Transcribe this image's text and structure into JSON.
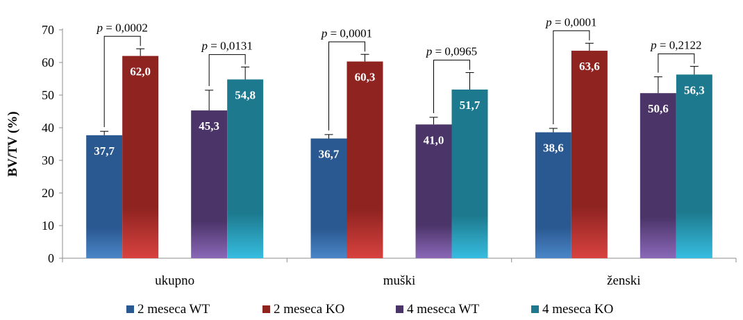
{
  "chart_data": {
    "type": "bar",
    "title": "",
    "xlabel": "",
    "ylabel": "BV/TV (%)",
    "ylim": [
      0,
      70
    ],
    "yticks": [
      0,
      10,
      20,
      30,
      40,
      50,
      60,
      70
    ],
    "categories": [
      "ukupno",
      "muški",
      "ženski"
    ],
    "series": [
      {
        "name": "2 meseca WT",
        "values": [
          37.7,
          36.7,
          38.6
        ],
        "labels": [
          "37,7",
          "36,7",
          "38,6"
        ],
        "errors": [
          1.2,
          1.2,
          1.2
        ],
        "color_top": "#2a5890",
        "color_bottom": "#4a86c8"
      },
      {
        "name": "2 meseca KO",
        "values": [
          62.0,
          60.3,
          63.6
        ],
        "labels": [
          "62,0",
          "60,3",
          "63,6"
        ],
        "errors": [
          2.2,
          2.2,
          2.3
        ],
        "color_top": "#8e2320",
        "color_bottom": "#d8423f"
      },
      {
        "name": "4 meseca WT",
        "values": [
          45.3,
          41.0,
          50.6
        ],
        "labels": [
          "45,3",
          "41,0",
          "50,6"
        ],
        "errors": [
          6.2,
          2.2,
          5.0
        ],
        "color_top": "#4b3468",
        "color_bottom": "#8a68b8"
      },
      {
        "name": "4 meseca KO",
        "values": [
          54.8,
          51.7,
          56.3
        ],
        "labels": [
          "54,8",
          "51,7",
          "56,3"
        ],
        "errors": [
          3.8,
          5.2,
          2.5
        ],
        "color_top": "#1d7a8e",
        "color_bottom": "#36bde0"
      }
    ],
    "comparisons": [
      {
        "category": 0,
        "pair": [
          0,
          1
        ],
        "label": "p = 0,0002"
      },
      {
        "category": 0,
        "pair": [
          2,
          3
        ],
        "label": "p = 0,0131"
      },
      {
        "category": 1,
        "pair": [
          0,
          1
        ],
        "label": "p = 0,0001"
      },
      {
        "category": 1,
        "pair": [
          2,
          3
        ],
        "label": "p = 0,0965"
      },
      {
        "category": 2,
        "pair": [
          0,
          1
        ],
        "label": "p = 0,0001"
      },
      {
        "category": 2,
        "pair": [
          2,
          3
        ],
        "label": "p = 0,2122"
      }
    ],
    "legend_position": "bottom",
    "grid": false
  }
}
